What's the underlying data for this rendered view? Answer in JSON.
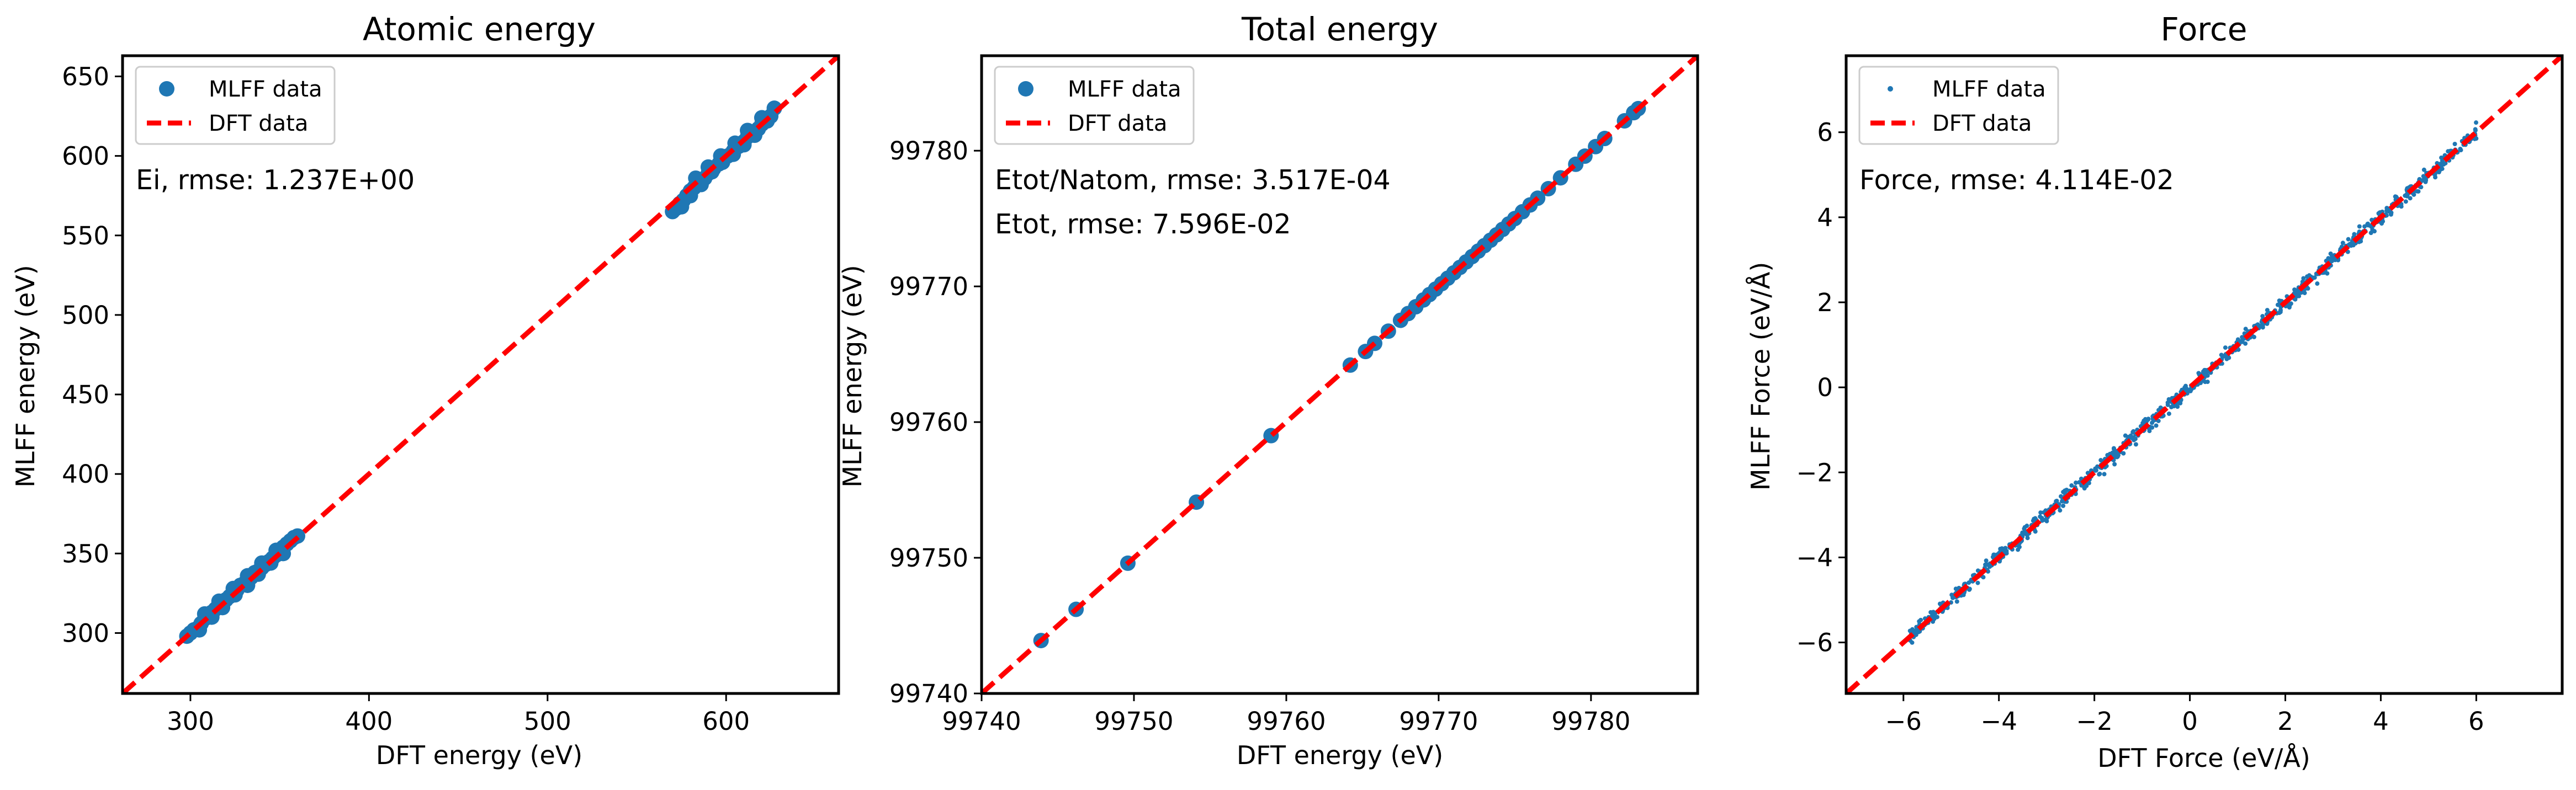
{
  "figure": {
    "background": "#ffffff"
  },
  "colors": {
    "mlff": "#1f77b4",
    "dft": "#ff0000"
  },
  "chart_data": [
    {
      "type": "scatter",
      "title": "Atomic energy",
      "xlabel": "DFT energy (eV)",
      "ylabel": "MLFF energy (eV)",
      "xlim": [
        262,
        663
      ],
      "ylim": [
        262,
        663
      ],
      "xticks": [
        300,
        400,
        500,
        600
      ],
      "xtick_labels": [
        "300",
        "400",
        "500",
        "600"
      ],
      "yticks": [
        300,
        350,
        400,
        450,
        500,
        550,
        600,
        650
      ],
      "ytick_labels": [
        "300",
        "350",
        "400",
        "450",
        "500",
        "550",
        "600",
        "650"
      ],
      "legend_placement": "upper-left",
      "annotations": [
        "Ei, rmse: 1.237E+00"
      ],
      "series": [
        {
          "name": "MLFF data",
          "kind": "scatter",
          "marker_size": "large",
          "points": [
            [
              298,
              298
            ],
            [
              300,
              300
            ],
            [
              302,
              302
            ],
            [
              304,
              303
            ],
            [
              306,
              306
            ],
            [
              308,
              309
            ],
            [
              310,
              310
            ],
            [
              312,
              313
            ],
            [
              314,
              315
            ],
            [
              316,
              317
            ],
            [
              318,
              318
            ],
            [
              320,
              321
            ],
            [
              322,
              323
            ],
            [
              324,
              325
            ],
            [
              326,
              327
            ],
            [
              328,
              330
            ],
            [
              330,
              331
            ],
            [
              332,
              334
            ],
            [
              334,
              335
            ],
            [
              336,
              338
            ],
            [
              338,
              339
            ],
            [
              340,
              341
            ],
            [
              342,
              343
            ],
            [
              344,
              345
            ],
            [
              346,
              347
            ],
            [
              348,
              349
            ],
            [
              350,
              351
            ],
            [
              352,
              354
            ],
            [
              354,
              356
            ],
            [
              356,
              358
            ],
            [
              358,
              360
            ],
            [
              360,
              361
            ],
            [
              305,
              302
            ],
            [
              312,
              310
            ],
            [
              318,
              316
            ],
            [
              325,
              324
            ],
            [
              332,
              330
            ],
            [
              338,
              337
            ],
            [
              345,
              344
            ],
            [
              352,
              350
            ],
            [
              308,
              312
            ],
            [
              316,
              320
            ],
            [
              324,
              328
            ],
            [
              332,
              336
            ],
            [
              340,
              344
            ],
            [
              348,
              352
            ],
            [
              570,
              565
            ],
            [
              572,
              567
            ],
            [
              574,
              570
            ],
            [
              576,
              572
            ],
            [
              578,
              575
            ],
            [
              580,
              578
            ],
            [
              582,
              580
            ],
            [
              585,
              583
            ],
            [
              588,
              586
            ],
            [
              590,
              589
            ],
            [
              593,
              592
            ],
            [
              596,
              595
            ],
            [
              598,
              598
            ],
            [
              601,
              600
            ],
            [
              604,
              603
            ],
            [
              607,
              606
            ],
            [
              610,
              609
            ],
            [
              612,
              612
            ],
            [
              615,
              614
            ],
            [
              618,
              617
            ],
            [
              620,
              620
            ],
            [
              623,
              622
            ],
            [
              625,
              625
            ],
            [
              627,
              630
            ],
            [
              575,
              568
            ],
            [
              580,
              575
            ],
            [
              586,
              582
            ],
            [
              592,
              590
            ],
            [
              598,
              596
            ],
            [
              604,
              601
            ],
            [
              610,
              607
            ],
            [
              616,
              613
            ],
            [
              583,
              586
            ],
            [
              590,
              593
            ],
            [
              597,
              600
            ],
            [
              605,
              608
            ],
            [
              612,
              616
            ],
            [
              620,
              624
            ]
          ]
        },
        {
          "name": "DFT data",
          "kind": "line",
          "style": "dashed",
          "points": [
            [
              262,
              262
            ],
            [
              663,
              663
            ]
          ]
        }
      ]
    },
    {
      "type": "scatter",
      "title": "Total energy",
      "xlabel": "DFT energy (eV)",
      "ylabel": "MLFF energy (eV)",
      "xlim": [
        99740,
        99787
      ],
      "ylim": [
        99740,
        99787
      ],
      "xticks": [
        99740,
        99750,
        99760,
        99770,
        99780
      ],
      "xtick_labels": [
        "99740",
        "99750",
        "99760",
        "99770",
        "99780"
      ],
      "yticks": [
        99740,
        99750,
        99760,
        99770,
        99780
      ],
      "ytick_labels": [
        "99740",
        "99750",
        "99760",
        "99770",
        "99780"
      ],
      "legend_placement": "upper-left",
      "annotations": [
        "Etot/Natom, rmse: 3.517E-04",
        "Etot, rmse: 7.596E-02"
      ],
      "series": [
        {
          "name": "MLFF data",
          "kind": "scatter",
          "marker_size": "large",
          "points": [
            [
              99743.9,
              99743.9
            ],
            [
              99746.2,
              99746.2
            ],
            [
              99749.6,
              99749.6
            ],
            [
              99754.1,
              99754.1
            ],
            [
              99759.0,
              99759.0
            ],
            [
              99764.2,
              99764.2
            ],
            [
              99765.2,
              99765.2
            ],
            [
              99765.8,
              99765.8
            ],
            [
              99766.7,
              99766.7
            ],
            [
              99767.5,
              99767.5
            ],
            [
              99768.0,
              99768.0
            ],
            [
              99768.5,
              99768.5
            ],
            [
              99769.0,
              99769.0
            ],
            [
              99769.4,
              99769.4
            ],
            [
              99769.8,
              99769.8
            ],
            [
              99770.2,
              99770.2
            ],
            [
              99770.6,
              99770.6
            ],
            [
              99771.0,
              99771.0
            ],
            [
              99771.4,
              99771.4
            ],
            [
              99771.8,
              99771.8
            ],
            [
              99772.2,
              99772.2
            ],
            [
              99772.6,
              99772.6
            ],
            [
              99773.0,
              99773.0
            ],
            [
              99773.4,
              99773.4
            ],
            [
              99773.8,
              99773.8
            ],
            [
              99774.2,
              99774.2
            ],
            [
              99774.6,
              99774.6
            ],
            [
              99775.0,
              99775.0
            ],
            [
              99775.5,
              99775.5
            ],
            [
              99776.0,
              99776.0
            ],
            [
              99776.5,
              99776.5
            ],
            [
              99777.2,
              99777.2
            ],
            [
              99778.0,
              99778.0
            ],
            [
              99779.0,
              99779.0
            ],
            [
              99779.6,
              99779.6
            ],
            [
              99780.3,
              99780.3
            ],
            [
              99780.9,
              99780.9
            ],
            [
              99782.2,
              99782.2
            ],
            [
              99782.8,
              99782.8
            ],
            [
              99783.1,
              99783.1
            ]
          ]
        },
        {
          "name": "DFT data",
          "kind": "line",
          "style": "dashed",
          "points": [
            [
              99740,
              99740
            ],
            [
              99787,
              99787
            ]
          ]
        }
      ]
    },
    {
      "type": "scatter",
      "title": "Force",
      "xlabel": "DFT Force (eV/Å)",
      "ylabel": "MLFF Force (eV/Å)",
      "xlim": [
        -7.2,
        7.8
      ],
      "ylim": [
        -7.2,
        7.8
      ],
      "xticks": [
        -6,
        -4,
        -2,
        0,
        2,
        4,
        6
      ],
      "xtick_labels": [
        "−6",
        "−4",
        "−2",
        "0",
        "2",
        "4",
        "6"
      ],
      "yticks": [
        -6,
        -4,
        -2,
        0,
        2,
        4,
        6
      ],
      "ytick_labels": [
        "−6",
        "−4",
        "−2",
        "0",
        "2",
        "4",
        "6"
      ],
      "legend_placement": "upper-left",
      "annotations": [
        "Force, rmse: 4.114E-02"
      ],
      "series": [
        {
          "name": "MLFF data",
          "kind": "scatter",
          "marker_size": "small",
          "x_range": [
            -5.9,
            6.0
          ],
          "spread": 0.09,
          "count": 900
        },
        {
          "name": "DFT data",
          "kind": "line",
          "style": "dashed",
          "points": [
            [
              -7.2,
              -7.2
            ],
            [
              7.8,
              7.8
            ]
          ]
        }
      ]
    }
  ]
}
